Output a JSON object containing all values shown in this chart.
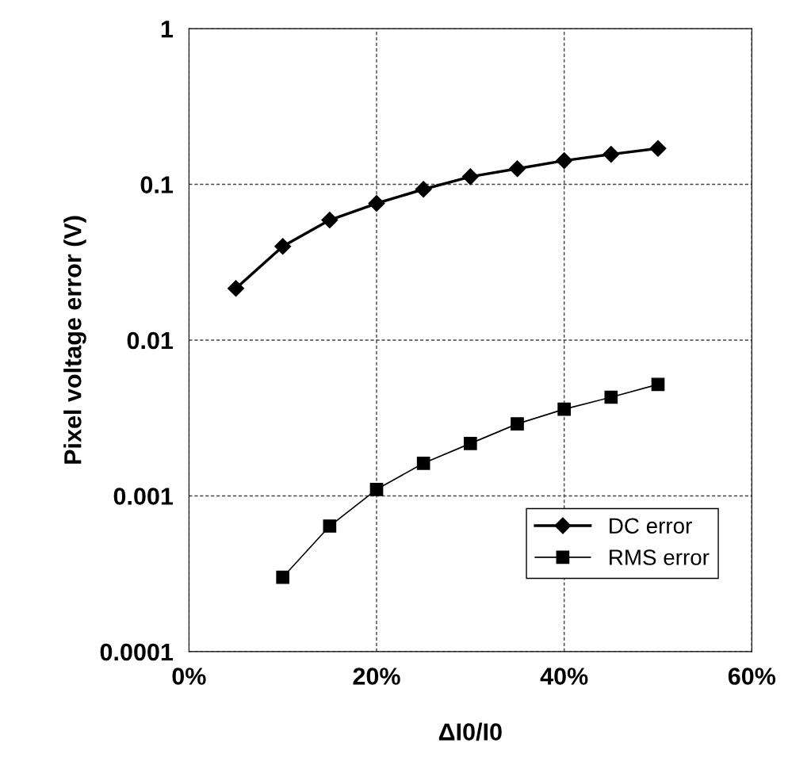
{
  "chart_data": {
    "type": "line",
    "xlabel": "ΔI0/I0",
    "ylabel": "Pixel voltage error (V)",
    "log": "y",
    "series": [
      {
        "name": "DC error",
        "color": "#000000",
        "marker": "diamond",
        "x": [
          5,
          10,
          15,
          20,
          25,
          30,
          35,
          40,
          45,
          50
        ],
        "values": [
          0.0215,
          0.04,
          0.059,
          0.0755,
          0.093,
          0.112,
          0.126,
          0.142,
          0.156,
          0.17
        ]
      },
      {
        "name": "RMS error",
        "color": "#000000",
        "marker": "square",
        "x": [
          10,
          15,
          20,
          25,
          30,
          35,
          40,
          45,
          50
        ],
        "values": [
          0.0003,
          0.00064,
          0.0011,
          0.00162,
          0.00217,
          0.0029,
          0.0036,
          0.0043,
          0.0052
        ]
      }
    ],
    "xlim": [
      0,
      60
    ],
    "xticks": [
      {
        "value": 0,
        "label": "0%"
      },
      {
        "value": 20,
        "label": "20%"
      },
      {
        "value": 40,
        "label": "40%"
      },
      {
        "value": 60,
        "label": "60%"
      }
    ],
    "ylim": [
      0.0001,
      1
    ],
    "yticks": [
      0.0001,
      0.001,
      0.01,
      0.1,
      1
    ],
    "grid": true,
    "line_style": "solid",
    "legend": "bottom right"
  }
}
